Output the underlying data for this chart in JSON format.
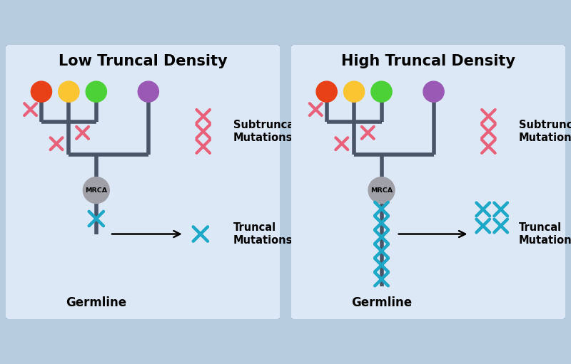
{
  "bg_color": "#dce8f5",
  "outer_bg": "#b8ccdf",
  "tree_color": "#4a5568",
  "tree_lw": 4.0,
  "mrca_color": "#9fa0a8",
  "mrca_text": "MRCA",
  "left_title": "Low Truncal Density",
  "right_title": "High Truncal Density",
  "node_colors": [
    "#e84118",
    "#fbc531",
    "#4cd137",
    "#9b59b6"
  ],
  "sub_x_color": "#e8607a",
  "trunk_x_color": "#1da8c8",
  "germline_label": "Germline",
  "subtruncal_label": "Subtruncal\nMutations",
  "truncal_label": "Truncal\nMutations",
  "title_fontsize": 15,
  "label_fontsize": 10.5,
  "germline_fontsize": 12
}
